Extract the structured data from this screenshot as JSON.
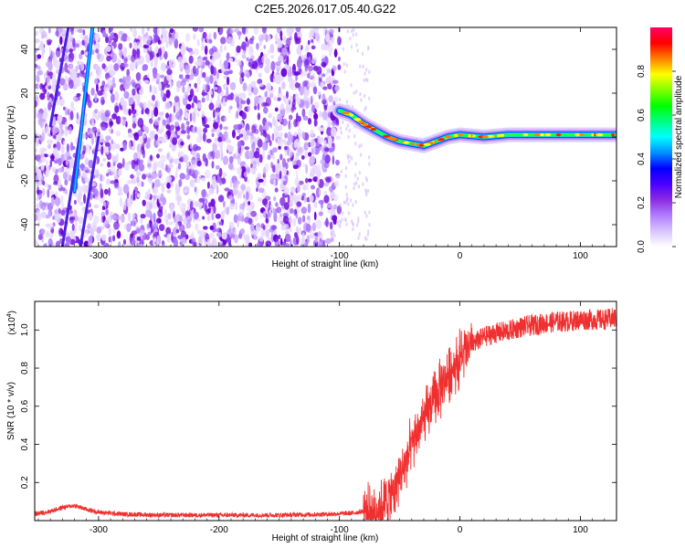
{
  "chart_data": [
    {
      "type": "heatmap",
      "title": "C2E5.2026.017.05.40.G22",
      "xlabel": "Height of straight line (km)",
      "ylabel": "Frequency (Hz)",
      "xlim": [
        -353,
        130
      ],
      "ylim": [
        -50,
        50
      ],
      "xticks": [
        -300,
        -200,
        -100,
        0,
        100
      ],
      "yticks": [
        -40,
        -20,
        0,
        20,
        40
      ],
      "colorbar": {
        "label": "Normalized spectral amplitude",
        "range": [
          0,
          1
        ],
        "ticks": [
          "0.0",
          "0.2",
          "0.4",
          "0.6",
          "0.8"
        ],
        "tick_values": [
          0.0,
          0.2,
          0.4,
          0.6,
          0.8
        ],
        "colors": [
          "#ffffff",
          "#d8c4ff",
          "#b07cff",
          "#8a2be2",
          "#4b00ff",
          "#0000ff",
          "#0090ff",
          "#00ffff",
          "#00ff80",
          "#00ff00",
          "#80ff00",
          "#ffff00",
          "#ff8000",
          "#ff0000",
          "#ff0066"
        ]
      },
      "signal_track": [
        {
          "x": -100,
          "y": 12
        },
        {
          "x": -90,
          "y": 10
        },
        {
          "x": -80,
          "y": 6
        },
        {
          "x": -70,
          "y": 3
        },
        {
          "x": -60,
          "y": 0
        },
        {
          "x": -50,
          "y": -2
        },
        {
          "x": -40,
          "y": -3
        },
        {
          "x": -30,
          "y": -4
        },
        {
          "x": -20,
          "y": -2
        },
        {
          "x": -10,
          "y": 0
        },
        {
          "x": 0,
          "y": 1
        },
        {
          "x": 20,
          "y": 0
        },
        {
          "x": 40,
          "y": 1
        },
        {
          "x": 60,
          "y": 1
        },
        {
          "x": 80,
          "y": 1
        },
        {
          "x": 100,
          "y": 1
        },
        {
          "x": 130,
          "y": 1
        }
      ],
      "stripes": [
        {
          "x0": -320,
          "y0": -25,
          "x1": -305,
          "y1": 50
        },
        {
          "x0": -330,
          "y0": -50,
          "x1": -310,
          "y1": 20
        },
        {
          "x0": -315,
          "y0": -50,
          "x1": -300,
          "y1": 0
        },
        {
          "x0": -340,
          "y0": 5,
          "x1": -325,
          "y1": 50
        }
      ]
    },
    {
      "type": "line",
      "xlabel": "Height of straight line (km)",
      "ylabel": "SNR (10 * v/v)",
      "y_multiplier": "(x10",
      "y_multiplier_exp": "4",
      "y_multiplier_close": ")",
      "xlim": [
        -353,
        130
      ],
      "ylim": [
        0,
        1.15
      ],
      "xticks": [
        -300,
        -200,
        -100,
        0,
        100
      ],
      "yticks": [
        0.2,
        0.4,
        0.6,
        0.8,
        1.0
      ],
      "ytick_labels": [
        "0.2",
        "0.4",
        "0.6",
        "0.8",
        "1.0"
      ],
      "line_color": "#f03030",
      "series": [
        {
          "name": "SNR",
          "x": [
            -353,
            -340,
            -330,
            -320,
            -310,
            -300,
            -280,
            -250,
            -200,
            -150,
            -110,
            -90,
            -80,
            -70,
            -65,
            -60,
            -55,
            -50,
            -45,
            -40,
            -35,
            -30,
            -25,
            -20,
            -15,
            -10,
            -5,
            0,
            5,
            10,
            20,
            30,
            40,
            50,
            60,
            70,
            80,
            90,
            100,
            110,
            120,
            130
          ],
          "y": [
            0.035,
            0.05,
            0.07,
            0.08,
            0.06,
            0.045,
            0.035,
            0.03,
            0.03,
            0.03,
            0.035,
            0.04,
            0.05,
            0.07,
            0.09,
            0.12,
            0.17,
            0.24,
            0.32,
            0.4,
            0.48,
            0.54,
            0.6,
            0.66,
            0.72,
            0.78,
            0.82,
            0.86,
            0.9,
            0.93,
            0.97,
            0.99,
            1.0,
            1.02,
            1.03,
            1.04,
            1.05,
            1.05,
            1.06,
            1.06,
            1.06,
            1.07
          ]
        }
      ]
    }
  ]
}
